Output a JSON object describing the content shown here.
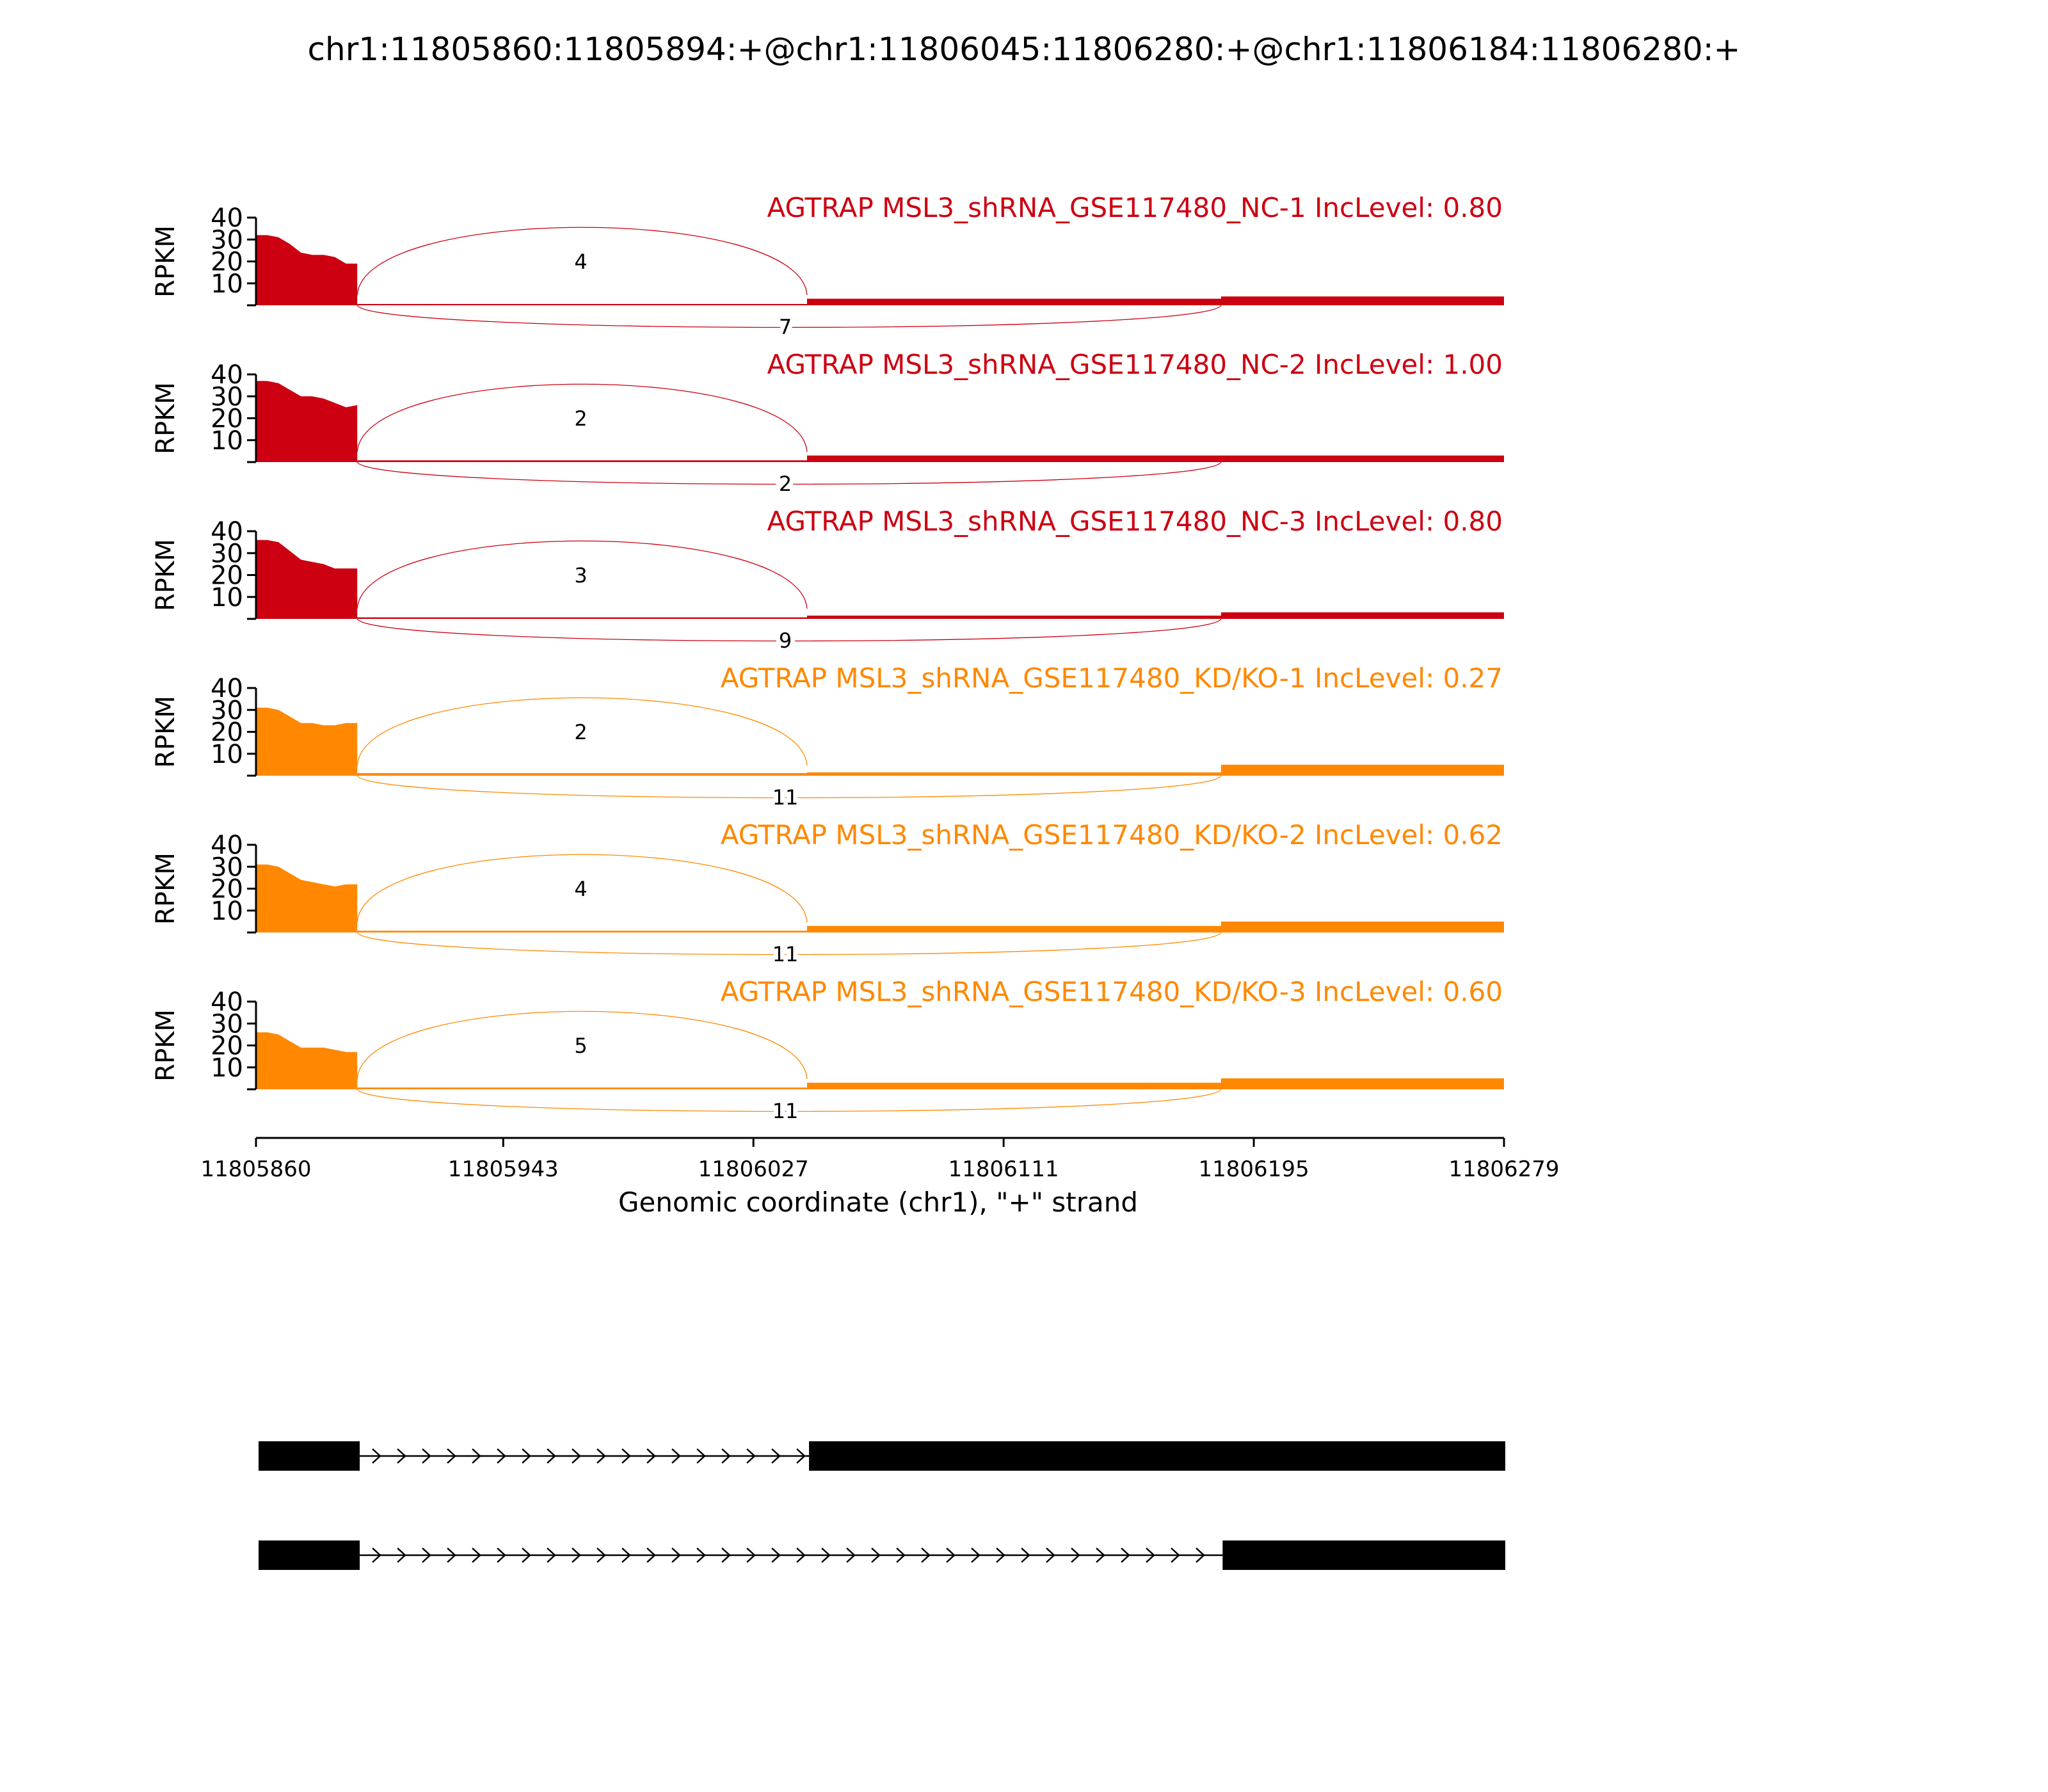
{
  "chart_data": {
    "type": "area",
    "title": "chr1:11805860:11805894:+@chr1:11806045:11806280:+@chr1:11806184:11806280:+",
    "xlabel": "Genomic coordinate (chr1), \"+\" strand",
    "ylabel": "RPKM",
    "xlim": [
      11805860,
      11806279
    ],
    "ylim": [
      0,
      40
    ],
    "x_ticks": [
      "11805860",
      "11805943",
      "11806027",
      "11806111",
      "11806195",
      "11806279"
    ],
    "y_ticks": [
      "10",
      "20",
      "30",
      "40"
    ],
    "exons": {
      "upstream": [
        11805860,
        11805894
      ],
      "alternative": [
        11806045,
        11806184
      ],
      "downstream": [
        11806184,
        11806279
      ]
    },
    "tracks": [
      {
        "label": "AGTRAP MSL3_shRNA_GSE117480_NC-1 IncLevel: 0.80",
        "color": "#cc0011",
        "upstream_profile": [
          32,
          32,
          31,
          28,
          24,
          23,
          23,
          22,
          19,
          19
        ],
        "intron_level": 0.6,
        "alt_level": 3,
        "down_level": 4,
        "inclusion_count": "4",
        "skipping_count": "7"
      },
      {
        "label": "AGTRAP MSL3_shRNA_GSE117480_NC-2 IncLevel: 1.00",
        "color": "#cc0011",
        "upstream_profile": [
          37,
          37,
          36,
          33,
          30,
          30,
          29,
          27,
          25,
          26
        ],
        "intron_level": 0.8,
        "alt_level": 3,
        "down_level": 3,
        "inclusion_count": "2",
        "skipping_count": "2"
      },
      {
        "label": "AGTRAP MSL3_shRNA_GSE117480_NC-3 IncLevel: 0.80",
        "color": "#cc0011",
        "upstream_profile": [
          36,
          36,
          35,
          31,
          27,
          26,
          25,
          23,
          23,
          23
        ],
        "intron_level": 0.7,
        "alt_level": 1.5,
        "down_level": 3,
        "inclusion_count": "3",
        "skipping_count": "9"
      },
      {
        "label": "AGTRAP MSL3_shRNA_GSE117480_KD/KO-1 IncLevel: 0.27",
        "color": "#ff8800",
        "upstream_profile": [
          31,
          31,
          30,
          27,
          24,
          24,
          23,
          23,
          24,
          24
        ],
        "intron_level": 1.2,
        "alt_level": 1.5,
        "down_level": 5,
        "inclusion_count": "2",
        "skipping_count": "11"
      },
      {
        "label": "AGTRAP MSL3_shRNA_GSE117480_KD/KO-2 IncLevel: 0.62",
        "color": "#ff8800",
        "upstream_profile": [
          31,
          31,
          30,
          27,
          24,
          23,
          22,
          21,
          22,
          22
        ],
        "intron_level": 0.8,
        "alt_level": 3,
        "down_level": 5,
        "inclusion_count": "4",
        "skipping_count": "11"
      },
      {
        "label": "AGTRAP MSL3_shRNA_GSE117480_KD/KO-3 IncLevel: 0.60",
        "color": "#ff8800",
        "upstream_profile": [
          26,
          26,
          25,
          22,
          19,
          19,
          19,
          18,
          17,
          17
        ],
        "intron_level": 0.8,
        "alt_level": 3,
        "down_level": 5,
        "inclusion_count": "5",
        "skipping_count": "11"
      }
    ],
    "transcripts": [
      {
        "exons": [
          [
            11805860,
            11805894
          ],
          [
            11806045,
            11806279
          ]
        ]
      },
      {
        "exons": [
          [
            11805860,
            11805894
          ],
          [
            11806184,
            11806279
          ]
        ]
      }
    ]
  }
}
